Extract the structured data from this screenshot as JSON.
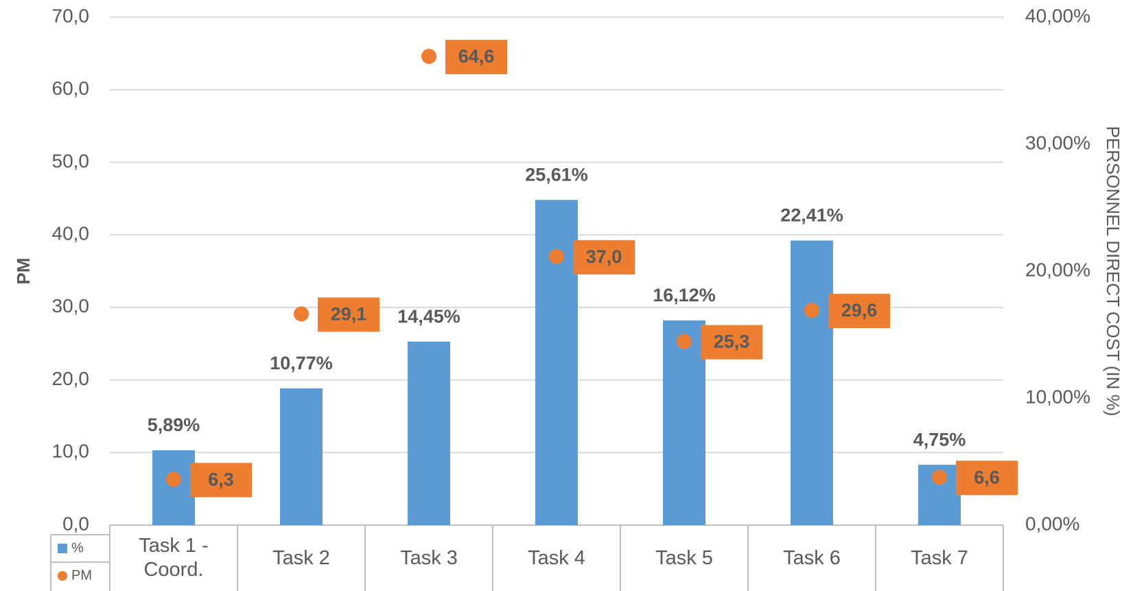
{
  "chart_data": {
    "type": "bar",
    "y_label": "PM",
    "y2_label": "PERSONNEL DIRECT COST (IN %)",
    "categories": [
      "Task 1 - Coord.",
      "Task 2",
      "Task 3",
      "Task 4",
      "Task 5",
      "Task 6",
      "Task 7"
    ],
    "series": [
      {
        "name": "%",
        "type": "bar",
        "axis": "y2",
        "color": "#5b9bd5",
        "values": [
          5.89,
          10.77,
          14.45,
          25.61,
          16.12,
          22.41,
          4.75
        ],
        "value_labels": [
          "5,89%",
          "10,77%",
          "14,45%",
          "25,61%",
          "16,12%",
          "22,41%",
          "4,75%"
        ]
      },
      {
        "name": "PM",
        "type": "scatter",
        "axis": "y",
        "color": "#ed7d31",
        "values": [
          6.3,
          29.1,
          64.6,
          37.0,
          25.3,
          29.6,
          6.6
        ],
        "value_labels": [
          "6,3",
          "29,1",
          "64,6",
          "37,0",
          "25,3",
          "29,6",
          "6,6"
        ]
      }
    ],
    "ylim": [
      0,
      70
    ],
    "yticks": [
      {
        "value": 0,
        "label": "0,0"
      },
      {
        "value": 10,
        "label": "10,0"
      },
      {
        "value": 20,
        "label": "20,0"
      },
      {
        "value": 30,
        "label": "30,0"
      },
      {
        "value": 40,
        "label": "40,0"
      },
      {
        "value": 50,
        "label": "50,0"
      },
      {
        "value": 60,
        "label": "60,0"
      },
      {
        "value": 70,
        "label": "70,0"
      }
    ],
    "y2lim": [
      0,
      40
    ],
    "y2ticks": [
      {
        "value": 0,
        "label": "0,00%"
      },
      {
        "value": 10,
        "label": "10,00%"
      },
      {
        "value": 20,
        "label": "20,00%"
      },
      {
        "value": 30,
        "label": "30,00%"
      },
      {
        "value": 40,
        "label": "40,00%"
      }
    ],
    "grid": true,
    "legend": "bottom-left"
  }
}
